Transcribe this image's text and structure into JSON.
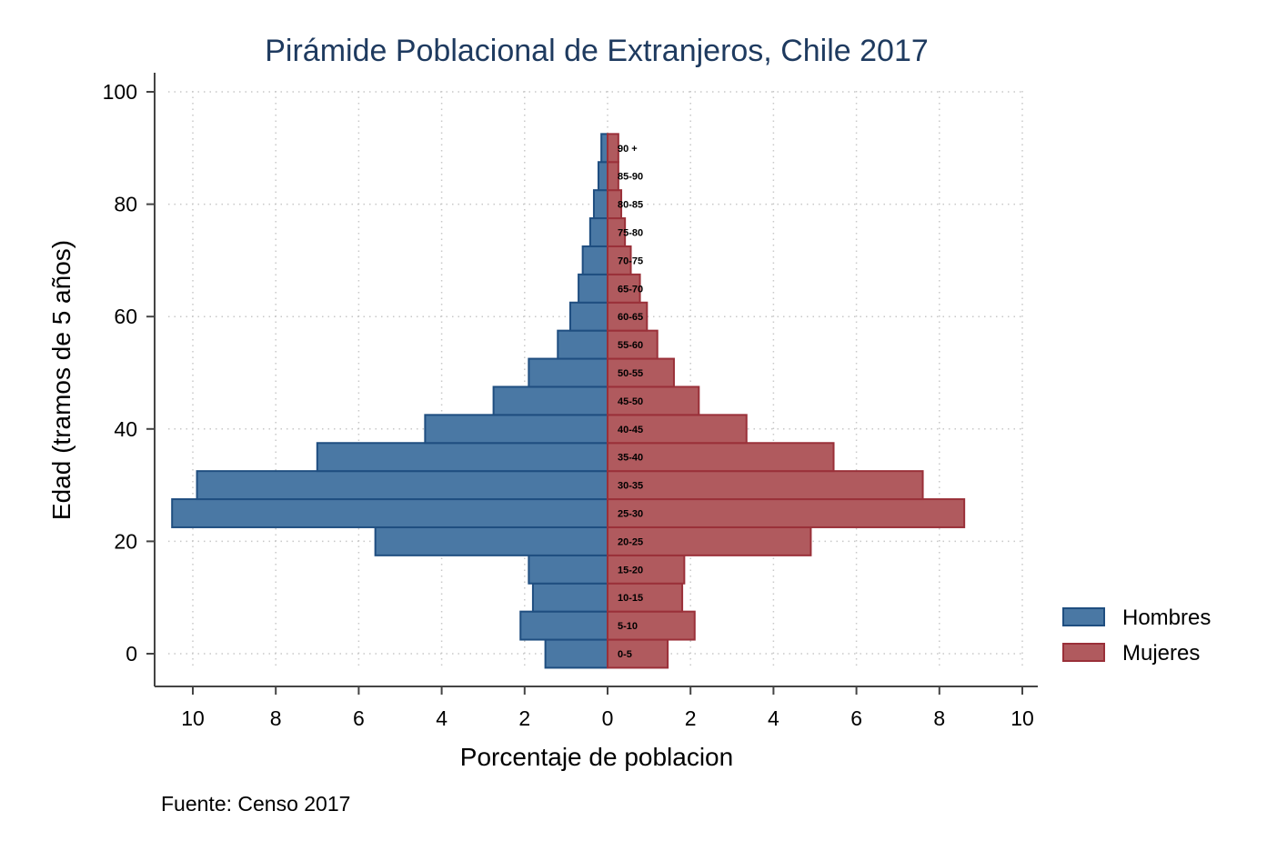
{
  "chart_data": {
    "type": "bar",
    "orientation": "horizontal",
    "title": "Pirámide Poblacional de Extranjeros, Chile 2017",
    "xlabel": "Porcentaje de poblacion",
    "ylabel": "Edad (tramos de 5 años)",
    "note": "Fuente: Censo 2017",
    "xlim": [
      -10.5,
      10
    ],
    "ylim": [
      -6,
      104
    ],
    "x_ticks": [
      -10,
      -8,
      -6,
      -4,
      -2,
      0,
      2,
      4,
      6,
      8,
      10
    ],
    "x_tick_labels": [
      "10",
      "8",
      "6",
      "4",
      "2",
      "0",
      "2",
      "4",
      "6",
      "8",
      "10"
    ],
    "y_ticks": [
      0,
      20,
      40,
      60,
      80,
      100
    ],
    "y_tick_labels": [
      "0",
      "20",
      "40",
      "60",
      "80",
      "100"
    ],
    "grid": true,
    "legend_position": "right",
    "categories": [
      "0-5",
      "5-10",
      "10-15",
      "15-20",
      "20-25",
      "25-30",
      "30-35",
      "35-40",
      "40-45",
      "45-50",
      "50-55",
      "55-60",
      "60-65",
      "65-70",
      "70-75",
      "75-80",
      "80-85",
      "85-90",
      "90 +"
    ],
    "y": [
      0,
      5,
      10,
      15,
      20,
      25,
      30,
      35,
      40,
      45,
      50,
      55,
      60,
      65,
      70,
      75,
      80,
      85,
      90
    ],
    "series": [
      {
        "name": "Hombres",
        "color": "#4a78a4",
        "edge_color": "#1f4e80",
        "values": [
          1.5,
          2.1,
          1.8,
          1.9,
          5.6,
          10.5,
          9.9,
          7.0,
          4.4,
          2.75,
          1.9,
          1.2,
          0.9,
          0.7,
          0.6,
          0.42,
          0.33,
          0.22,
          0.15
        ]
      },
      {
        "name": "Mujeres",
        "color": "#b05a5e",
        "edge_color": "#9a3039",
        "values": [
          1.45,
          2.1,
          1.8,
          1.85,
          4.9,
          8.6,
          7.6,
          5.45,
          3.35,
          2.2,
          1.6,
          1.2,
          0.95,
          0.78,
          0.56,
          0.42,
          0.33,
          0.26,
          0.26
        ]
      }
    ]
  }
}
